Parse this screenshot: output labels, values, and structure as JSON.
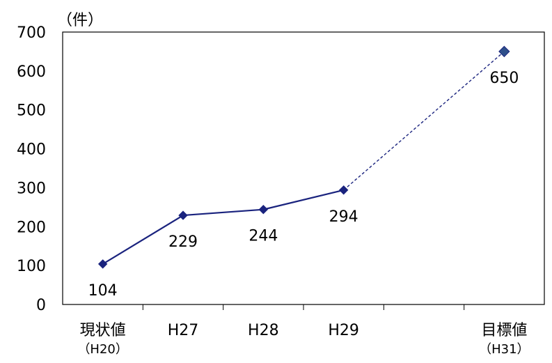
{
  "chart_data": {
    "type": "line",
    "unit_label": "（件）",
    "ylim": [
      0,
      700
    ],
    "yticks": [
      0,
      100,
      200,
      300,
      400,
      500,
      600,
      700
    ],
    "grid": false,
    "categories": [
      {
        "label": "現状値",
        "sub": "（H20）"
      },
      {
        "label": "H27",
        "sub": ""
      },
      {
        "label": "H28",
        "sub": ""
      },
      {
        "label": "H29",
        "sub": ""
      },
      {
        "label": "",
        "sub": ""
      },
      {
        "label": "目標値",
        "sub": "（H31）"
      }
    ],
    "series": [
      {
        "values": [
          104,
          229,
          244,
          294,
          null,
          650
        ],
        "data_labels": [
          "104",
          "229",
          "244",
          "294",
          "",
          "650"
        ],
        "color": "#1a237e",
        "target_color": "#2e4f8a",
        "line_style": "solid for actuals; dashed from H29 to target"
      }
    ]
  }
}
